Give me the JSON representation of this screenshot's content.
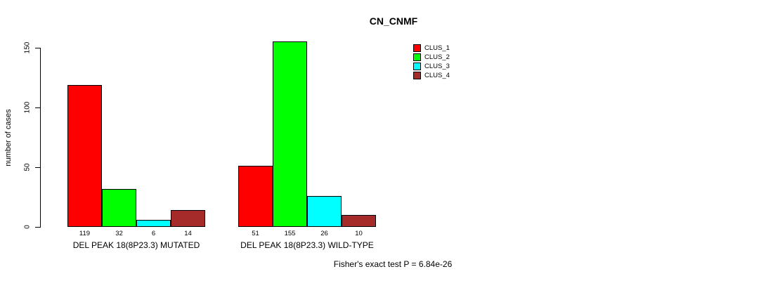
{
  "title": "CN_CNMF",
  "footer": "Fisher's exact test P = 6.84e-26",
  "chart_data": {
    "type": "bar",
    "title": "CN_CNMF",
    "xlabel": "",
    "ylabel": "number of cases",
    "ylim": [
      0,
      150
    ],
    "yticks": [
      0,
      50,
      100,
      150
    ],
    "grid": false,
    "legend_position": "top-right",
    "categories": [
      "DEL PEAK 18(8P23.3) MUTATED",
      "DEL PEAK 18(8P23.3) WILD-TYPE"
    ],
    "series": [
      {
        "name": "CLUS_1",
        "color": "#ff0000",
        "values": [
          119,
          51
        ]
      },
      {
        "name": "CLUS_2",
        "color": "#00ff00",
        "values": [
          32,
          155
        ]
      },
      {
        "name": "CLUS_3",
        "color": "#00ffff",
        "values": [
          6,
          26
        ]
      },
      {
        "name": "CLUS_4",
        "color": "#a52a2a",
        "values": [
          14,
          10
        ]
      }
    ],
    "annotation": "Fisher's exact test P = 6.84e-26"
  }
}
